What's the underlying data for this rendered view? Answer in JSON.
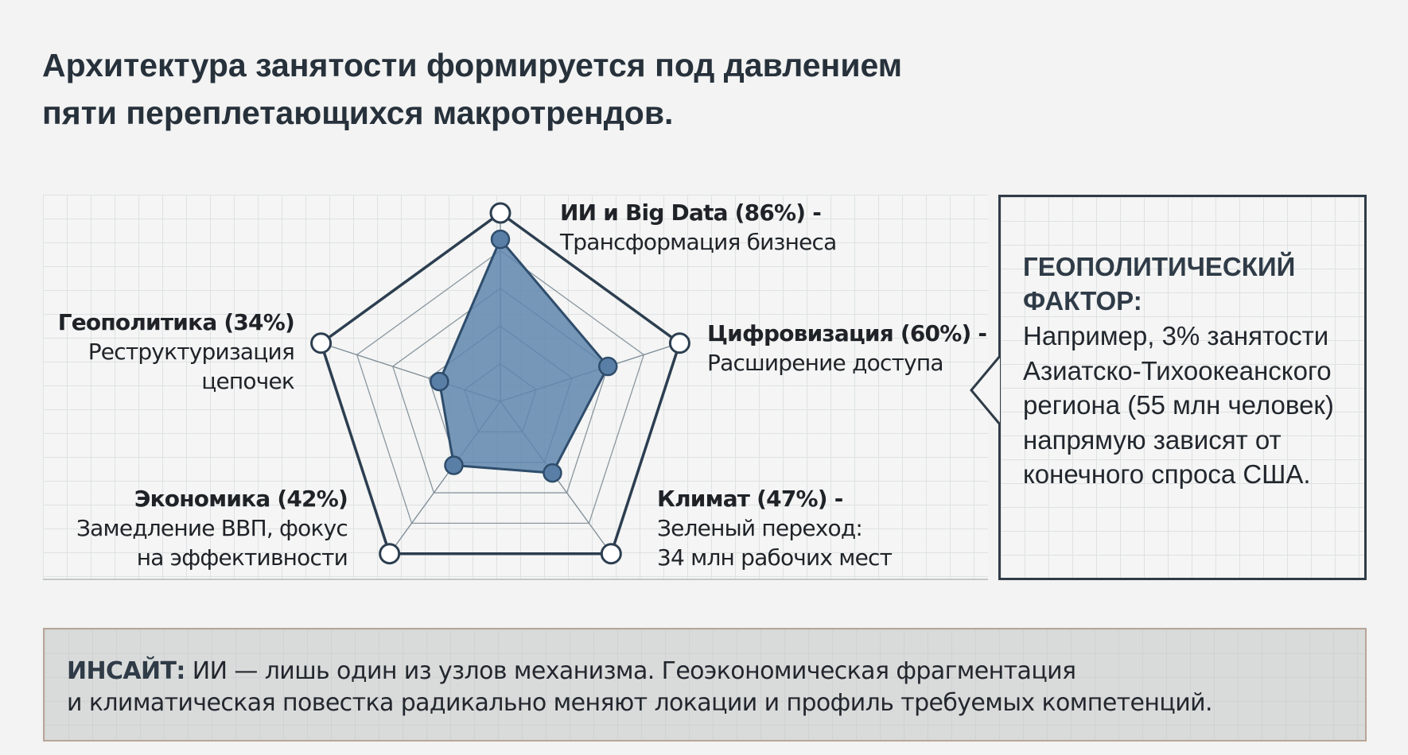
{
  "title": {
    "line1": "Архитектура занятости формируется под давлением",
    "line2": "пяти переплетающихся макротрендов."
  },
  "chart_data": {
    "type": "radar",
    "range": [
      0,
      100
    ],
    "axes": [
      {
        "name": "ИИ и Big Data",
        "value": 86,
        "label": "ИИ и Big Data (86%) -",
        "desc": [
          "Трансформация бизнеса"
        ]
      },
      {
        "name": "Цифровизация",
        "value": 60,
        "label": "Цифровизация (60%) -",
        "desc": [
          "Расширение доступа"
        ]
      },
      {
        "name": "Климат",
        "value": 47,
        "label": "Климат (47%) -",
        "desc": [
          "Зеленый переход:",
          "34 млн рабочих мест"
        ]
      },
      {
        "name": "Экономика",
        "value": 42,
        "label": "Экономика (42%)",
        "desc": [
          "Замедление ВВП, фокус",
          "на эффективности"
        ]
      },
      {
        "name": "Геополитика",
        "value": 34,
        "label": "Геополитика (34%)",
        "desc": [
          "Реструктуризация",
          "цепочек"
        ]
      }
    ],
    "colors": {
      "fill": "#5f86ad",
      "stroke": "#2c3e50"
    }
  },
  "callout": {
    "heading": [
      "ГЕОПОЛИТИЧЕСКИЙ",
      "ФАКТОР:"
    ],
    "body": [
      "Например, 3% занятости",
      "Азиатско-Тихоокеанского",
      "региона (55 млн человек)",
      "напрямую зависят от",
      "конечного спроса США."
    ]
  },
  "insight": {
    "label": "ИНСАЙТ:",
    "line1": " ИИ — лишь один из узлов механизма. Геоэкономическая фрагментация",
    "line2": "и климатическая повестка радикально меняют локации и профиль требуемых компетенций."
  }
}
